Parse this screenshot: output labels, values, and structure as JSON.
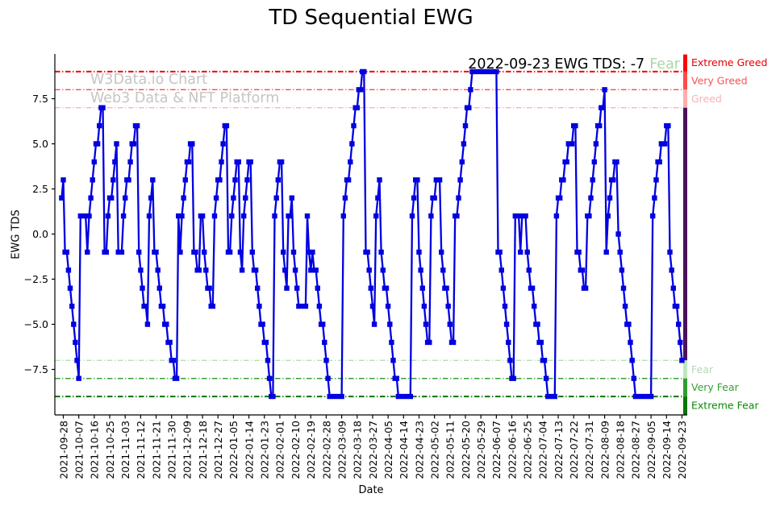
{
  "chart": {
    "title": "TD Sequential EWG",
    "watermark": {
      "line1": "W3Data.io Chart",
      "line2": "Web3 Data & NFT Platform",
      "color": "#c5c5c5"
    },
    "annotation": {
      "text": "2022-09-23 EWG TDS: -7",
      "status": "Fear",
      "status_color": "#a8d8a8"
    }
  },
  "chart_data": {
    "type": "line",
    "title": "TD Sequential EWG",
    "xlabel": "Date",
    "ylabel": "EWG TDS",
    "series_name": "EWG TDS",
    "line_color": "#0000e0",
    "marker": "square",
    "marker_size": 6.4,
    "start_date": "2021-09-27",
    "frequency": "daily",
    "ylim": [
      -10.05,
      9.95
    ],
    "grid": false,
    "values": [
      2,
      3,
      -1,
      -1,
      -2,
      -3,
      -4,
      -5,
      -6,
      -7,
      -8,
      1,
      1,
      1,
      1,
      -1,
      1,
      2,
      3,
      4,
      5,
      5,
      6,
      7,
      7,
      -1,
      -1,
      1,
      2,
      2,
      3,
      4,
      5,
      -1,
      -1,
      -1,
      1,
      2,
      3,
      3,
      4,
      5,
      5,
      6,
      6,
      -1,
      -2,
      -3,
      -4,
      -4,
      -5,
      1,
      2,
      3,
      -1,
      -1,
      -2,
      -3,
      -4,
      -4,
      -5,
      -5,
      -6,
      -6,
      -7,
      -7,
      -8,
      -8,
      1,
      -1,
      1,
      2,
      3,
      4,
      4,
      5,
      5,
      -1,
      -1,
      -2,
      -2,
      1,
      1,
      -1,
      -2,
      -3,
      -3,
      -4,
      -4,
      1,
      2,
      3,
      3,
      4,
      5,
      6,
      6,
      -1,
      -1,
      1,
      2,
      3,
      4,
      4,
      -1,
      -2,
      1,
      2,
      3,
      4,
      4,
      -1,
      -2,
      -2,
      -3,
      -4,
      -5,
      -5,
      -6,
      -6,
      -7,
      -8,
      -9,
      -9,
      1,
      2,
      3,
      4,
      4,
      -1,
      -2,
      -3,
      1,
      1,
      2,
      -1,
      -2,
      -3,
      -4,
      -4,
      -4,
      -4,
      -4,
      1,
      -1,
      -2,
      -1,
      -2,
      -2,
      -3,
      -4,
      -5,
      -5,
      -6,
      -7,
      -8,
      -9,
      -9,
      -9,
      -9,
      -9,
      -9,
      -9,
      -9,
      1,
      2,
      3,
      3,
      4,
      5,
      6,
      7,
      7,
      8,
      8,
      9,
      9,
      -1,
      -1,
      -2,
      -3,
      -4,
      -5,
      1,
      2,
      3,
      -1,
      -2,
      -3,
      -3,
      -4,
      -5,
      -6,
      -7,
      -8,
      -8,
      -9,
      -9,
      -9,
      -9,
      -9,
      -9,
      -9,
      -9,
      1,
      2,
      3,
      3,
      -1,
      -2,
      -3,
      -4,
      -5,
      -6,
      -6,
      1,
      2,
      2,
      3,
      3,
      3,
      -1,
      -2,
      -3,
      -3,
      -4,
      -5,
      -6,
      -6,
      1,
      1,
      2,
      3,
      4,
      5,
      6,
      7,
      7,
      8,
      9,
      9,
      9,
      9,
      9,
      9,
      9,
      9,
      9,
      9,
      9,
      9,
      9,
      9,
      9,
      -1,
      -1,
      -2,
      -3,
      -4,
      -5,
      -6,
      -7,
      -8,
      -8,
      1,
      1,
      1,
      -1,
      1,
      1,
      1,
      -1,
      -2,
      -3,
      -3,
      -4,
      -5,
      -5,
      -6,
      -6,
      -7,
      -7,
      -8,
      -9,
      -9,
      -9,
      -9,
      -9,
      1,
      2,
      2,
      3,
      3,
      4,
      4,
      5,
      5,
      5,
      6,
      6,
      -1,
      -1,
      -2,
      -2,
      -3,
      -3,
      1,
      1,
      2,
      3,
      4,
      5,
      6,
      6,
      7,
      7,
      8,
      -1,
      1,
      2,
      3,
      3,
      4,
      4,
      0,
      -1,
      -2,
      -3,
      -4,
      -5,
      -5,
      -6,
      -7,
      -8,
      -9,
      -9,
      -9,
      -9,
      -9,
      -9,
      -9,
      -9,
      -9,
      -9,
      1,
      2,
      3,
      4,
      4,
      5,
      5,
      5,
      6,
      6,
      -1,
      -2,
      -3,
      -4,
      -4,
      -5,
      -6,
      -7
    ],
    "x_tick_interval_days": 9,
    "x_tick_start_index": 1,
    "x_tick_labels": [
      "2021-09-28",
      "2021-10-07",
      "2021-10-16",
      "2021-10-25",
      "2021-11-03",
      "2021-11-12",
      "2021-11-21",
      "2021-11-30",
      "2021-12-09",
      "2021-12-18",
      "2021-12-27",
      "2022-01-05",
      "2022-01-14",
      "2022-01-23",
      "2022-02-01",
      "2022-02-10",
      "2022-02-19",
      "2022-02-28",
      "2022-03-09",
      "2022-03-18",
      "2022-03-27",
      "2022-04-05",
      "2022-04-14",
      "2022-04-23",
      "2022-05-02",
      "2022-05-11",
      "2022-05-20",
      "2022-05-29",
      "2022-06-07",
      "2022-06-16",
      "2022-06-25",
      "2022-07-04",
      "2022-07-13",
      "2022-07-22",
      "2022-07-31",
      "2022-08-09",
      "2022-08-18",
      "2022-08-27",
      "2022-09-05",
      "2022-09-14",
      "2022-09-23"
    ],
    "y_ticks": [
      {
        "value": 7.5,
        "label": "7.5"
      },
      {
        "value": 5.0,
        "label": "5.0"
      },
      {
        "value": 2.5,
        "label": "2.5"
      },
      {
        "value": 0.0,
        "label": "0.0"
      },
      {
        "value": -2.5,
        "label": "−2.5"
      },
      {
        "value": -5.0,
        "label": "−5.0"
      },
      {
        "value": -7.5,
        "label": "−7.5"
      }
    ],
    "reference_lines": [
      {
        "label": "Extreme Greed",
        "value": 9,
        "line_color": "#f40000",
        "label_color": "#e60000",
        "line_width": 2,
        "label_anchor_value": 9.5
      },
      {
        "label": "Very Greed",
        "value": 8,
        "line_color": "#ff4a4a",
        "label_color": "#f25555",
        "line_width": 1.3,
        "label_anchor_value": 8.5
      },
      {
        "label": "Greed",
        "value": 7,
        "line_color": "#ffb3b3",
        "label_color": "#f7b2b2",
        "line_width": 1.3,
        "label_anchor_value": 7.5
      },
      {
        "label": "Fear",
        "value": -7,
        "line_color": "#b5dfb5",
        "label_color": "#b2d9b2",
        "line_width": 1.3,
        "label_anchor_value": -7.5
      },
      {
        "label": "Very Fear",
        "value": -8,
        "line_color": "#35a035",
        "label_color": "#379f37",
        "line_width": 1.5,
        "label_anchor_value": -8.5
      },
      {
        "label": "Extreme Fear",
        "value": -9,
        "line_color": "#077507",
        "label_color": "#0a8a0a",
        "line_width": 2,
        "label_anchor_value": -9.5
      }
    ],
    "right_zone_bar": [
      {
        "from": 9.95,
        "to": 9,
        "color": "#fe0000"
      },
      {
        "from": 9,
        "to": 8,
        "color": "#ff4a4a"
      },
      {
        "from": 8,
        "to": 7,
        "color": "#ffadad"
      },
      {
        "from": 7,
        "to": -7,
        "color": "#4a1259"
      },
      {
        "from": -7,
        "to": -8,
        "color": "#bfe6bf"
      },
      {
        "from": -8,
        "to": -9,
        "color": "#2f9e2f"
      },
      {
        "from": -9,
        "to": -10.05,
        "color": "#077507"
      }
    ]
  }
}
